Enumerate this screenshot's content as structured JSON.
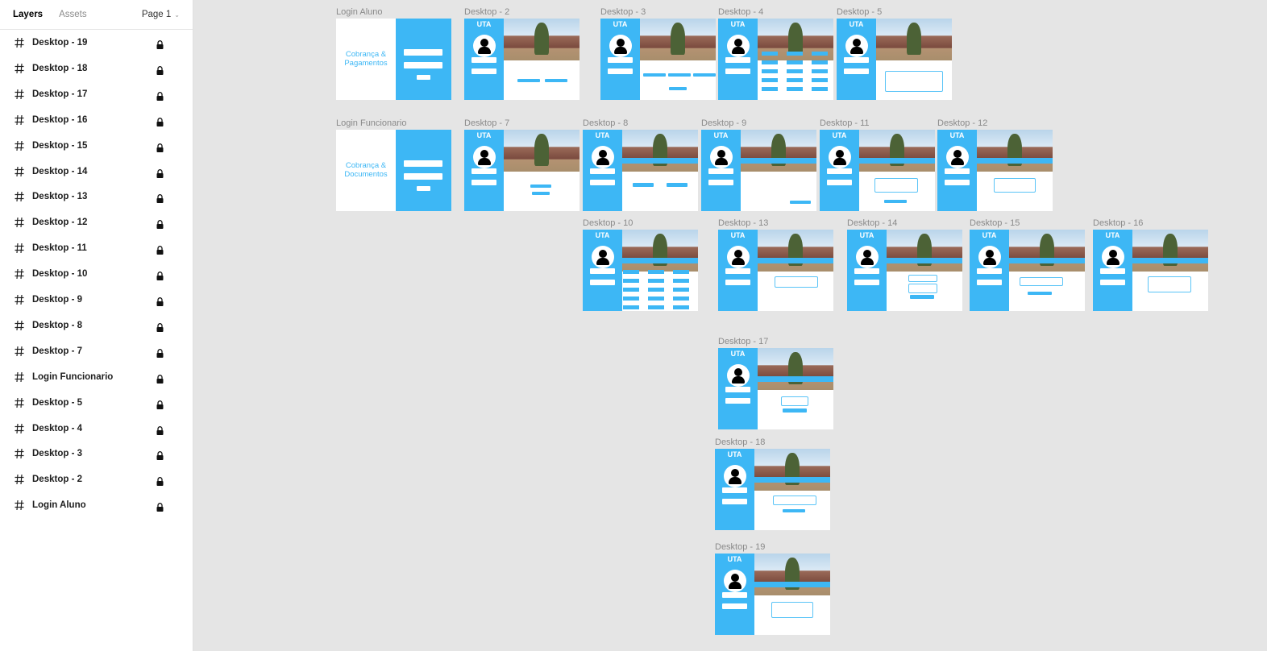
{
  "sidebar": {
    "tab_layers": "Layers",
    "tab_assets": "Assets",
    "page": "Page 1",
    "layers": [
      "Desktop - 19",
      "Desktop - 18",
      "Desktop - 17",
      "Desktop - 16",
      "Desktop - 15",
      "Desktop - 14",
      "Desktop - 13",
      "Desktop - 12",
      "Desktop - 11",
      "Desktop - 10",
      "Desktop - 9",
      "Desktop - 8",
      "Desktop - 7",
      "Login Funcionario",
      "Desktop - 5",
      "Desktop - 4",
      "Desktop - 3",
      "Desktop - 2",
      "Login Aluno"
    ]
  },
  "canvas": {
    "frames": {
      "login_aluno": "Login Aluno",
      "d2": "Desktop - 2",
      "d3": "Desktop - 3",
      "d4": "Desktop - 4",
      "d5": "Desktop - 5",
      "login_func": "Login Funcionario",
      "d7": "Desktop - 7",
      "d8": "Desktop - 8",
      "d9": "Desktop - 9",
      "d11": "Desktop - 11",
      "d12": "Desktop - 12",
      "d10": "Desktop - 10",
      "d13": "Desktop - 13",
      "d14": "Desktop - 14",
      "d15": "Desktop - 15",
      "d16": "Desktop - 16",
      "d17": "Desktop - 17",
      "d18": "Desktop - 18",
      "d19": "Desktop - 19"
    },
    "brand_aluno": [
      "Cobrança &",
      "Pagamentos"
    ],
    "brand_func": [
      "Cobrança &",
      "Documentos"
    ]
  },
  "colors": {
    "accent": "#3db7f5",
    "canvas": "#e5e5e5"
  }
}
